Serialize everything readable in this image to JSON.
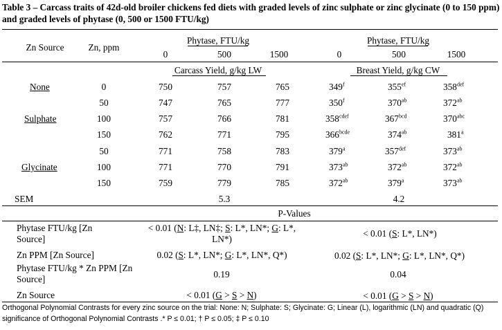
{
  "title": "Table 3 – Carcass traits of 42d-old broiler chickens fed diets with graded levels of zinc sulphate or zinc glycinate (0 to 150 ppm) and graded levels of phytase (0, 500 or 1500 FTU/kg)",
  "header": {
    "zn_source": "Zn Source",
    "zn_ppm": "Zn, ppm",
    "phytase_group_1": "Phytase, FTU/kg",
    "phytase_group_2": "Phytase, FTU/kg",
    "levels": [
      "0",
      "500",
      "1500",
      "0",
      "500",
      "1500"
    ],
    "carcass_yield": "Carcass Yield, g/kg LW",
    "breast_yield": "Breast Yield, g/kg CW"
  },
  "rows": [
    {
      "source": "None",
      "ppm": "0",
      "carcass": [
        "750",
        "757",
        "765"
      ],
      "breast": [
        {
          "v": "349",
          "s": "f"
        },
        {
          "v": "355",
          "s": "ef"
        },
        {
          "v": "358",
          "s": "def"
        }
      ]
    },
    {
      "source": "",
      "ppm": "50",
      "carcass": [
        "747",
        "765",
        "777"
      ],
      "breast": [
        {
          "v": "350",
          "s": "f"
        },
        {
          "v": "370",
          "s": "ab"
        },
        {
          "v": "372",
          "s": "ab"
        }
      ]
    },
    {
      "source": "Sulphate",
      "ppm": "100",
      "carcass": [
        "757",
        "766",
        "781"
      ],
      "breast": [
        {
          "v": "358",
          "s": "cdef"
        },
        {
          "v": "367",
          "s": "bcd"
        },
        {
          "v": "370",
          "s": "abc"
        }
      ]
    },
    {
      "source": "",
      "ppm": "150",
      "carcass": [
        "762",
        "771",
        "795"
      ],
      "breast": [
        {
          "v": "366",
          "s": "bcde"
        },
        {
          "v": "374",
          "s": "ab"
        },
        {
          "v": "381",
          "s": "a"
        }
      ]
    },
    {
      "source": "",
      "ppm": "50",
      "carcass": [
        "771",
        "758",
        "783"
      ],
      "breast": [
        {
          "v": "379",
          "s": "a"
        },
        {
          "v": "357",
          "s": "def"
        },
        {
          "v": "373",
          "s": "ab"
        }
      ]
    },
    {
      "source": "Glycinate",
      "ppm": "100",
      "carcass": [
        "771",
        "770",
        "791"
      ],
      "breast": [
        {
          "v": "373",
          "s": "ab"
        },
        {
          "v": "372",
          "s": "ab"
        },
        {
          "v": "372",
          "s": "ab"
        }
      ]
    },
    {
      "source": "",
      "ppm": "150",
      "carcass": [
        "759",
        "779",
        "785"
      ],
      "breast": [
        {
          "v": "372",
          "s": "ab"
        },
        {
          "v": "379",
          "s": "a"
        },
        {
          "v": "373",
          "s": "ab"
        }
      ]
    }
  ],
  "sem": {
    "label": "SEM",
    "carcass": "5.3",
    "breast": "4.2"
  },
  "pvalues_heading": "P-Values",
  "pvalues": [
    {
      "label": "Phytase FTU/kg [Zn Source]",
      "carcass": "< 0.01 (N: L‡, LN‡; S: L*, LN*; G: L*, LN*)",
      "breast": "< 0.01 (S: L*, LN*)"
    },
    {
      "label": "Zn PPM [Zn Source]",
      "carcass": "0.02 (S: L*, LN*; G: L*, LN*, Q*)",
      "breast": "0.02 (S: L*, LN*; G: L*, LN*, Q*)"
    },
    {
      "label": "Phytase FTU/kg * Zn PPM [Zn Source]",
      "carcass": "0.19",
      "breast": "0.04"
    },
    {
      "label": "Zn Source",
      "carcass": "< 0.01 (G > S > N)",
      "breast": "< 0.01 (G > S > N)"
    }
  ],
  "footnote": "Orthogonal Polynomial Contrasts for every zinc source on the trial: None: N; Sulphate: S; Glycinate: G; Linear (L), logarithmic (LN) and quadratic (Q) significance of Orthogonal Polynomial Contrasts .* P ≤ 0.01; † P ≤ 0.05; ‡ P ≤ 0.10"
}
